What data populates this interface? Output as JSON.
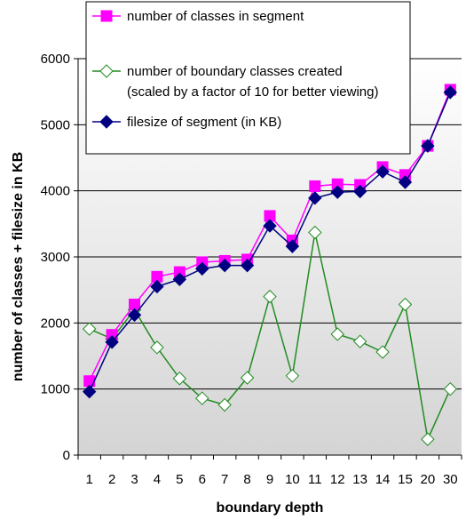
{
  "chart_data": {
    "type": "line",
    "xlabel": "boundary depth",
    "ylabel": "number of classes   +  filesize in KB",
    "ylim": [
      0,
      6000
    ],
    "yticks": [
      0,
      1000,
      2000,
      3000,
      4000,
      5000,
      6000
    ],
    "grid": "horizontal",
    "legend_position": "top",
    "categories": [
      "1",
      "2",
      "3",
      "4",
      "5",
      "6",
      "7",
      "8",
      "9",
      "10",
      "11",
      "12",
      "13",
      "14",
      "15",
      "20",
      "30"
    ],
    "series": [
      {
        "name": "number of classes in segment",
        "marker": "square",
        "color": "#ff00ff",
        "line_color": "#ff00ff",
        "values": [
          1120,
          1820,
          2280,
          2700,
          2770,
          2920,
          2940,
          2960,
          3620,
          3250,
          4070,
          4100,
          4090,
          4360,
          4240,
          4680,
          5530
        ]
      },
      {
        "name": "number of boundary classes created\n(scaled by a factor of 10 for better viewing)",
        "marker": "diamond-open",
        "color": "#ffffff",
        "line_color": "#228b22",
        "values": [
          1910,
          1760,
          2200,
          1630,
          1160,
          860,
          760,
          1170,
          2400,
          1200,
          3370,
          1830,
          1720,
          1560,
          2280,
          240,
          1000
        ]
      },
      {
        "name": "filesize of segment (in KB)",
        "marker": "diamond",
        "color": "#000080",
        "line_color": "#000080",
        "values": [
          960,
          1710,
          2120,
          2550,
          2660,
          2820,
          2870,
          2870,
          3470,
          3160,
          3890,
          3980,
          3990,
          4290,
          4130,
          4680,
          5490
        ]
      }
    ]
  }
}
